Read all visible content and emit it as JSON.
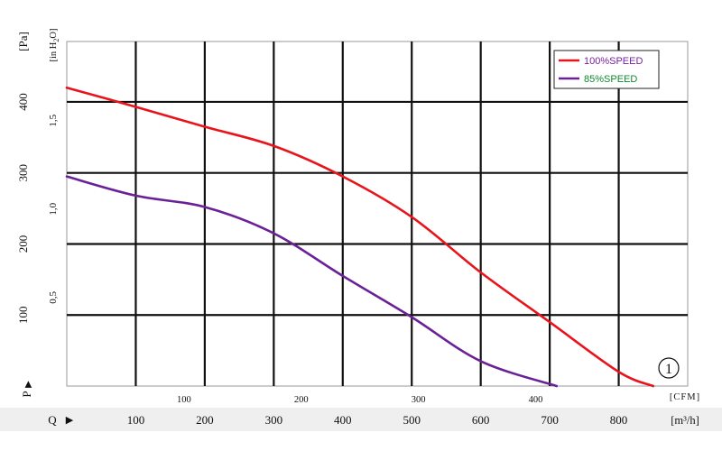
{
  "chart_data": {
    "type": "line",
    "title": "",
    "units": {
      "pa": "[Pa]",
      "inh2o_prefix": "[in H",
      "inh2o_sub": "2",
      "inh2o_suffix": "O]",
      "cfm": "[CFM]",
      "m3h": "[m³/h]"
    },
    "axis_markers": {
      "p": "P",
      "q": "Q",
      "arrow": "▶"
    },
    "y_pa": {
      "min": 0,
      "max": 485,
      "ticks": [
        100,
        200,
        300,
        400
      ]
    },
    "y_inh2o": {
      "ticks": [
        0.5,
        1.0,
        1.5
      ],
      "labels": [
        "0,5",
        "1,0",
        "1,5"
      ],
      "pa_per_unit": 249.09
    },
    "x_m3h": {
      "min": 0,
      "max": 900,
      "ticks": [
        100,
        200,
        300,
        400,
        500,
        600,
        700,
        800
      ]
    },
    "x_cfm": {
      "ticks": [
        100,
        200,
        300,
        400
      ],
      "m3h_per_cfm": 1.699
    },
    "grid": true,
    "legend_position": "top-right",
    "curve_number": "1",
    "series": [
      {
        "name": "100%SPEED",
        "color": "#e8141c",
        "label_color": "#7a1fa0",
        "x": [
          0,
          100,
          200,
          300,
          400,
          500,
          600,
          700,
          800,
          850
        ],
        "y": [
          420,
          393,
          365,
          338,
          295,
          238,
          160,
          90,
          20,
          0
        ]
      },
      {
        "name": "85%SPEED",
        "color": "#6a2196",
        "label_color": "#0f8a2e",
        "x": [
          0,
          100,
          200,
          300,
          400,
          500,
          600,
          710
        ],
        "y": [
          295,
          268,
          252,
          215,
          155,
          97,
          35,
          0
        ]
      }
    ]
  }
}
